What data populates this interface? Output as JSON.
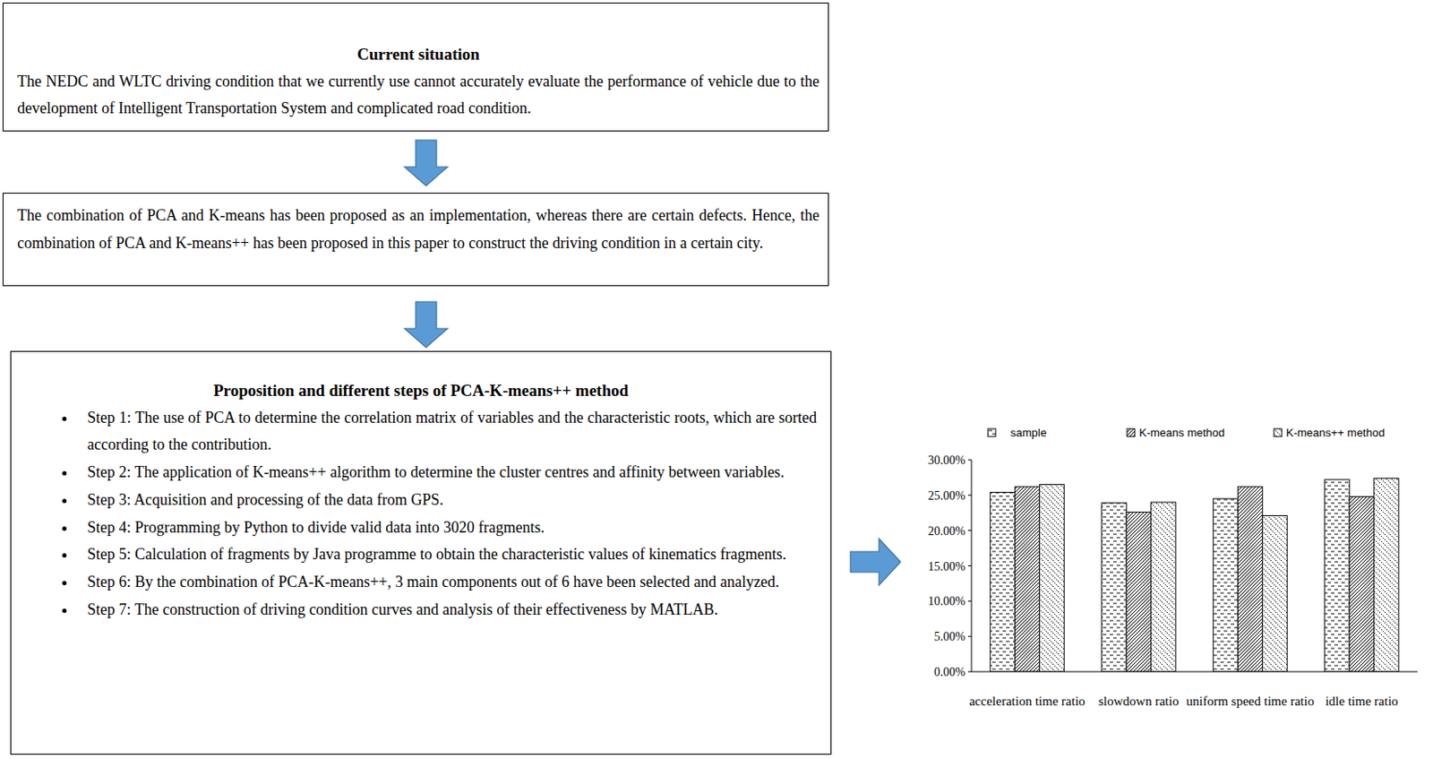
{
  "current": {
    "title": "Current situation",
    "text": "The NEDC and WLTC driving condition that we currently use cannot accurately evaluate the performance of vehicle due to the development of Intelligent Transportation System and complicated road condition."
  },
  "proposal": {
    "text": "The combination of PCA and K-means has been proposed as an implementation, whereas there are certain defects. Hence, the combination of PCA and K-means++ has been proposed in this paper to construct the driving condition in a certain city."
  },
  "method": {
    "title": "Proposition and different steps of PCA-K-means++ method",
    "steps": [
      "Step 1: The use of PCA to determine the correlation matrix of variables and the characteristic roots, which are sorted according to the contribution.",
      "Step 2: The application of K-means++ algorithm to determine the cluster centres and affinity between variables.",
      "Step 3: Acquisition and processing of the data from GPS.",
      "Step 4: Programming by Python to divide valid data into 3020 fragments.",
      "Step 5: Calculation of fragments by Java programme to obtain the characteristic values of kinematics fragments.",
      "Step 6: By the combination of PCA-K-means++, 3 main components out of 6 have been selected and analyzed.",
      "Step 7: The construction of driving condition curves and analysis of their effectiveness by MATLAB."
    ]
  },
  "chart_data": {
    "type": "bar",
    "categories": [
      "acceleration time ratio",
      "slowdown ratio",
      "uniform speed time ratio",
      "idle time ratio"
    ],
    "series": [
      {
        "name": "sample",
        "color": "#000000",
        "values": [
          25.4,
          23.9,
          24.5,
          27.2
        ]
      },
      {
        "name": "K-means method",
        "color": "#000000",
        "values": [
          26.2,
          22.6,
          26.2,
          24.8
        ]
      },
      {
        "name": "K-means++ method",
        "color": "#000000",
        "values": [
          26.5,
          24.0,
          22.1,
          27.4
        ]
      }
    ],
    "ylim": [
      0,
      30
    ],
    "yticks": [
      {
        "value": 0,
        "label": "0.00%"
      },
      {
        "value": 5,
        "label": "5.00%"
      },
      {
        "value": 10,
        "label": "10.00%"
      },
      {
        "value": 15,
        "label": "15.00%"
      },
      {
        "value": 20,
        "label": "20.00%"
      },
      {
        "value": 25,
        "label": "25.00%"
      },
      {
        "value": 30,
        "label": "30.00%"
      }
    ],
    "grid": false,
    "legend": "top"
  }
}
